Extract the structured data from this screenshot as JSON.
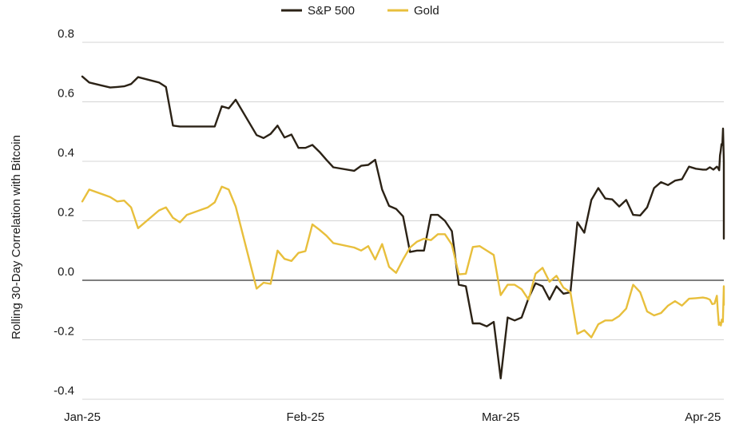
{
  "chart_data": {
    "type": "line",
    "title": "",
    "xlabel": "",
    "ylabel": "Rolling 30-Day Correlation with Bitcoin",
    "ylim": [
      -0.4,
      0.8
    ],
    "yticks": [
      -0.4,
      -0.2,
      0.0,
      0.2,
      0.4,
      0.6,
      0.8
    ],
    "ytick_labels": [
      "-0.4",
      "-0.2",
      "0.0",
      "0.2",
      "0.4",
      "0.6",
      "0.8"
    ],
    "xlim": [
      "2025-01-02",
      "2025-04-04"
    ],
    "xticks": [
      {
        "date": "2025-01-02",
        "label": "Jan-25"
      },
      {
        "date": "2025-02-03",
        "label": "Feb-25"
      },
      {
        "date": "2025-03-03",
        "label": "Mar-25"
      },
      {
        "date": "2025-04-01",
        "label": "Apr-25"
      }
    ],
    "grid": "horizontal",
    "zero_line": true,
    "legend": {
      "position": "top-center"
    },
    "series": [
      {
        "name": "S&P 500",
        "color": "#2b2216",
        "points": [
          [
            "2025-01-02",
            0.685
          ],
          [
            "2025-01-03",
            0.665
          ],
          [
            "2025-01-06",
            0.648
          ],
          [
            "2025-01-07",
            0.65
          ],
          [
            "2025-01-08",
            0.652
          ],
          [
            "2025-01-09",
            0.66
          ],
          [
            "2025-01-10",
            0.683
          ],
          [
            "2025-01-13",
            0.665
          ],
          [
            "2025-01-14",
            0.65
          ],
          [
            "2025-01-15",
            0.52
          ],
          [
            "2025-01-16",
            0.517
          ],
          [
            "2025-01-17",
            0.517
          ],
          [
            "2025-01-20",
            0.517
          ],
          [
            "2025-01-21",
            0.517
          ],
          [
            "2025-01-22",
            0.585
          ],
          [
            "2025-01-23",
            0.578
          ],
          [
            "2025-01-24",
            0.607
          ],
          [
            "2025-01-27",
            0.488
          ],
          [
            "2025-01-28",
            0.478
          ],
          [
            "2025-01-29",
            0.492
          ],
          [
            "2025-01-30",
            0.52
          ],
          [
            "2025-01-31",
            0.48
          ],
          [
            "2025-02-01",
            0.49
          ],
          [
            "2025-02-02",
            0.445
          ],
          [
            "2025-02-03",
            0.445
          ],
          [
            "2025-02-04",
            0.455
          ],
          [
            "2025-02-05",
            0.432
          ],
          [
            "2025-02-06",
            0.405
          ],
          [
            "2025-02-07",
            0.38
          ],
          [
            "2025-02-10",
            0.368
          ],
          [
            "2025-02-11",
            0.385
          ],
          [
            "2025-02-12",
            0.388
          ],
          [
            "2025-02-13",
            0.405
          ],
          [
            "2025-02-14",
            0.305
          ],
          [
            "2025-02-15",
            0.25
          ],
          [
            "2025-02-16",
            0.24
          ],
          [
            "2025-02-17",
            0.215
          ],
          [
            "2025-02-18",
            0.095
          ],
          [
            "2025-02-19",
            0.1
          ],
          [
            "2025-02-20",
            0.1
          ],
          [
            "2025-02-21",
            0.22
          ],
          [
            "2025-02-22",
            0.22
          ],
          [
            "2025-02-23",
            0.2
          ],
          [
            "2025-02-24",
            0.165
          ],
          [
            "2025-02-25",
            -0.015
          ],
          [
            "2025-02-26",
            -0.02
          ],
          [
            "2025-02-27",
            -0.145
          ],
          [
            "2025-02-28",
            -0.145
          ],
          [
            "2025-03-01",
            -0.155
          ],
          [
            "2025-03-02",
            -0.14
          ],
          [
            "2025-03-03",
            -0.33
          ],
          [
            "2025-03-04",
            -0.125
          ],
          [
            "2025-03-05",
            -0.135
          ],
          [
            "2025-03-06",
            -0.125
          ],
          [
            "2025-03-07",
            -0.06
          ],
          [
            "2025-03-08",
            -0.01
          ],
          [
            "2025-03-09",
            -0.02
          ],
          [
            "2025-03-10",
            -0.065
          ],
          [
            "2025-03-11",
            -0.02
          ],
          [
            "2025-03-12",
            -0.045
          ],
          [
            "2025-03-13",
            -0.04
          ],
          [
            "2025-03-14",
            0.195
          ],
          [
            "2025-03-15",
            0.16
          ],
          [
            "2025-03-16",
            0.27
          ],
          [
            "2025-03-17",
            0.31
          ],
          [
            "2025-03-18",
            0.275
          ],
          [
            "2025-03-19",
            0.272
          ],
          [
            "2025-03-20",
            0.248
          ],
          [
            "2025-03-21",
            0.27
          ],
          [
            "2025-03-22",
            0.22
          ],
          [
            "2025-03-23",
            0.218
          ],
          [
            "2025-03-24",
            0.245
          ],
          [
            "2025-03-25",
            0.31
          ],
          [
            "2025-03-26",
            0.33
          ],
          [
            "2025-03-27",
            0.32
          ],
          [
            "2025-03-28",
            0.335
          ],
          [
            "2025-03-29",
            0.34
          ],
          [
            "2025-03-30",
            0.382
          ],
          [
            "2025-03-31",
            0.375
          ],
          [
            "2025-04-01",
            0.372
          ],
          [
            "2025-04-01",
            0.372
          ],
          [
            "2025-04-02",
            0.38
          ],
          [
            "2025-04-02",
            0.372
          ],
          [
            "2025-04-03",
            0.382
          ],
          [
            "2025-04-03",
            0.38
          ],
          [
            "2025-04-03",
            0.375
          ],
          [
            "2025-04-03",
            0.37
          ],
          [
            "2025-04-03",
            0.42
          ],
          [
            "2025-04-03",
            0.435
          ],
          [
            "2025-04-03",
            0.458
          ],
          [
            "2025-04-03",
            0.455
          ],
          [
            "2025-04-03",
            0.51
          ],
          [
            "2025-04-04",
            0.4
          ],
          [
            "2025-04-04",
            0.28
          ],
          [
            "2025-04-04",
            0.145
          ],
          [
            "2025-04-04",
            0.14
          ]
        ]
      },
      {
        "name": "Gold",
        "color": "#e8bf3c",
        "points": [
          [
            "2025-01-02",
            0.265
          ],
          [
            "2025-01-03",
            0.305
          ],
          [
            "2025-01-06",
            0.28
          ],
          [
            "2025-01-07",
            0.265
          ],
          [
            "2025-01-08",
            0.268
          ],
          [
            "2025-01-09",
            0.245
          ],
          [
            "2025-01-10",
            0.175
          ],
          [
            "2025-01-13",
            0.235
          ],
          [
            "2025-01-14",
            0.245
          ],
          [
            "2025-01-15",
            0.21
          ],
          [
            "2025-01-16",
            0.195
          ],
          [
            "2025-01-17",
            0.22
          ],
          [
            "2025-01-20",
            0.245
          ],
          [
            "2025-01-21",
            0.262
          ],
          [
            "2025-01-22",
            0.315
          ],
          [
            "2025-01-23",
            0.305
          ],
          [
            "2025-01-24",
            0.248
          ],
          [
            "2025-01-27",
            -0.028
          ],
          [
            "2025-01-28",
            -0.008
          ],
          [
            "2025-01-29",
            -0.012
          ],
          [
            "2025-01-30",
            0.1
          ],
          [
            "2025-01-31",
            0.072
          ],
          [
            "2025-02-01",
            0.065
          ],
          [
            "2025-02-02",
            0.092
          ],
          [
            "2025-02-03",
            0.098
          ],
          [
            "2025-02-04",
            0.188
          ],
          [
            "2025-02-05",
            0.17
          ],
          [
            "2025-02-06",
            0.15
          ],
          [
            "2025-02-07",
            0.125
          ],
          [
            "2025-02-10",
            0.11
          ],
          [
            "2025-02-11",
            0.1
          ],
          [
            "2025-02-12",
            0.115
          ],
          [
            "2025-02-13",
            0.07
          ],
          [
            "2025-02-14",
            0.122
          ],
          [
            "2025-02-15",
            0.045
          ],
          [
            "2025-02-16",
            0.025
          ],
          [
            "2025-02-17",
            0.07
          ],
          [
            "2025-02-18",
            0.11
          ],
          [
            "2025-02-19",
            0.13
          ],
          [
            "2025-02-20",
            0.14
          ],
          [
            "2025-02-21",
            0.135
          ],
          [
            "2025-02-22",
            0.155
          ],
          [
            "2025-02-23",
            0.155
          ],
          [
            "2025-02-24",
            0.12
          ],
          [
            "2025-02-25",
            0.02
          ],
          [
            "2025-02-26",
            0.022
          ],
          [
            "2025-02-27",
            0.112
          ],
          [
            "2025-02-28",
            0.115
          ],
          [
            "2025-03-01",
            0.1
          ],
          [
            "2025-03-02",
            0.085
          ],
          [
            "2025-03-03",
            -0.05
          ],
          [
            "2025-03-04",
            -0.015
          ],
          [
            "2025-03-05",
            -0.015
          ],
          [
            "2025-03-06",
            -0.03
          ],
          [
            "2025-03-07",
            -0.065
          ],
          [
            "2025-03-08",
            0.022
          ],
          [
            "2025-03-09",
            0.042
          ],
          [
            "2025-03-10",
            -0.005
          ],
          [
            "2025-03-11",
            0.015
          ],
          [
            "2025-03-12",
            -0.025
          ],
          [
            "2025-03-13",
            -0.04
          ],
          [
            "2025-03-14",
            -0.18
          ],
          [
            "2025-03-15",
            -0.168
          ],
          [
            "2025-03-16",
            -0.192
          ],
          [
            "2025-03-17",
            -0.148
          ],
          [
            "2025-03-18",
            -0.135
          ],
          [
            "2025-03-19",
            -0.135
          ],
          [
            "2025-03-20",
            -0.12
          ],
          [
            "2025-03-21",
            -0.095
          ],
          [
            "2025-03-22",
            -0.015
          ],
          [
            "2025-03-23",
            -0.04
          ],
          [
            "2025-03-24",
            -0.105
          ],
          [
            "2025-03-25",
            -0.118
          ],
          [
            "2025-03-26",
            -0.11
          ],
          [
            "2025-03-27",
            -0.085
          ],
          [
            "2025-03-28",
            -0.07
          ],
          [
            "2025-03-29",
            -0.085
          ],
          [
            "2025-03-30",
            -0.062
          ],
          [
            "2025-03-31",
            -0.06
          ],
          [
            "2025-04-01",
            -0.058
          ],
          [
            "2025-04-01",
            -0.06
          ],
          [
            "2025-04-02",
            -0.065
          ],
          [
            "2025-04-02",
            -0.08
          ],
          [
            "2025-04-02",
            -0.078
          ],
          [
            "2025-04-03",
            -0.052
          ],
          [
            "2025-04-03",
            -0.105
          ],
          [
            "2025-04-03",
            -0.15
          ],
          [
            "2025-04-03",
            -0.142
          ],
          [
            "2025-04-03",
            -0.152
          ],
          [
            "2025-04-03",
            -0.132
          ],
          [
            "2025-04-03",
            -0.14
          ],
          [
            "2025-04-04",
            -0.02
          ],
          [
            "2025-04-04",
            -0.055
          ],
          [
            "2025-04-04",
            -0.082
          ],
          [
            "2025-04-04",
            -0.083
          ]
        ]
      }
    ]
  }
}
